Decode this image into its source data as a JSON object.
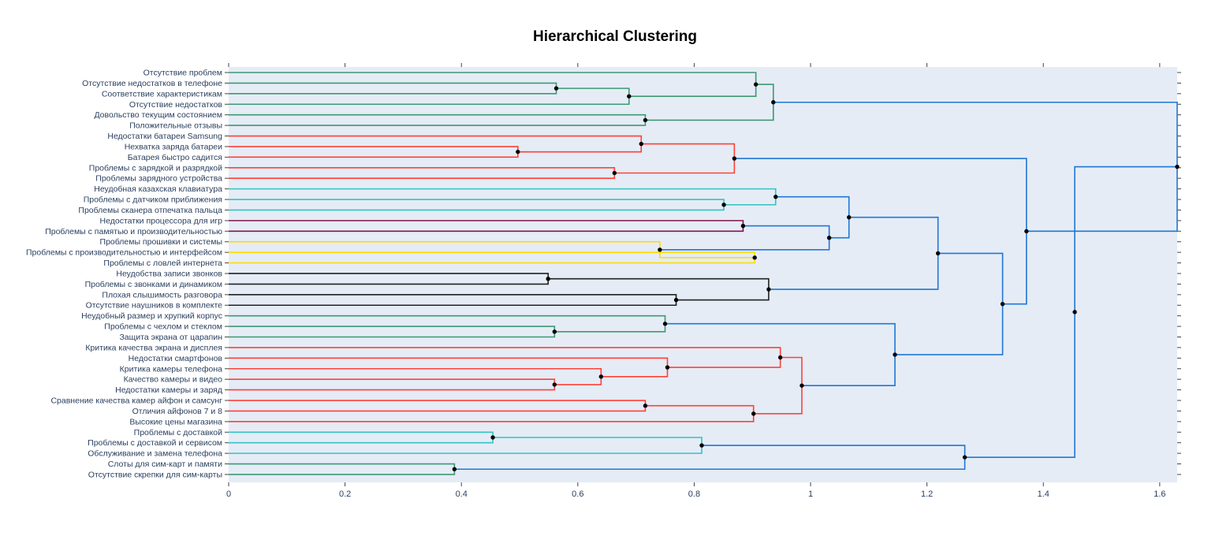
{
  "chart_data": {
    "type": "dendrogram",
    "title": "Hierarchical Clustering",
    "orientation": "horizontal",
    "xlim": [
      0,
      1.63
    ],
    "x_ticks": [
      "0",
      "0.2",
      "0.4",
      "0.6",
      "0.8",
      "1",
      "1.2",
      "1.4",
      "1.6"
    ],
    "x_tick_values": [
      0,
      0.2,
      0.4,
      0.6,
      0.8,
      1.0,
      1.2,
      1.4,
      1.6
    ],
    "plot_background": "#E5ECF6",
    "leaves": [
      "Отсутствие проблем",
      "Отсутствие недостатков в телефоне",
      "Соответствие характеристикам",
      "Отсутствие недостатков",
      "Довольство текущим состоянием",
      "Положительные отзывы",
      "Недостатки батареи Samsung",
      "Нехватка заряда батареи",
      "Батарея быстро садится",
      "Проблемы с зарядкой и разрядкой",
      "Проблемы зарядного устройства",
      "Неудобная казахская клавиатура",
      "Проблемы с датчиком приближения",
      "Проблемы сканера отпечатка пальца",
      "Недостатки процессора для игр",
      "Проблемы с памятью и производительностью",
      "Проблемы прошивки и системы",
      "Проблемы с производительностью и интерфейсом",
      "Проблемы с ловлей интернета",
      "Неудобства записи звонков",
      "Проблемы с звонками и динамиком",
      "Плохая слышимость разговора",
      "Отсутствие наушников в комплекте",
      "Неудобный размер и хрупкий корпус",
      "Проблемы с чехлом и стеклом",
      "Защита экрана от царапин",
      "Критика качества экрана и дисплея",
      "Недостатки смартфонов",
      "Критика камеры телефона",
      "Качество камеры и видео",
      "Недостатки камеры и заряд",
      "Сравнение качества камер айфон и самсунг",
      "Отличия айфонов 7 и 8",
      "Высокие цены магазина",
      "Проблемы с доставкой",
      "Проблемы с доставкой и сервисом",
      "Обслуживание и замена телефона",
      "Слоты для сим-карт и памяти",
      "Отсутствие скрепки для сим-карты"
    ],
    "merges": [
      {
        "a": "L1",
        "b": "L2",
        "height": 0.563,
        "color": "#3D9970"
      },
      {
        "a": "N0",
        "b": "L3",
        "height": 0.688,
        "color": "#3D9970"
      },
      {
        "a": "L0",
        "b": "N1",
        "height": 0.906,
        "color": "#3D9970"
      },
      {
        "a": "L4",
        "b": "L5",
        "height": 0.716,
        "color": "#3D9970"
      },
      {
        "a": "N2",
        "b": "N3",
        "height": 0.936,
        "color": "#3D9970"
      },
      {
        "a": "L7",
        "b": "L8",
        "height": 0.497,
        "color": "#FF4136"
      },
      {
        "a": "L6",
        "b": "N5",
        "height": 0.709,
        "color": "#FF4136"
      },
      {
        "a": "L9",
        "b": "L10",
        "height": 0.663,
        "color": "#FF4136"
      },
      {
        "a": "N6",
        "b": "N7",
        "height": 0.869,
        "color": "#FF4136"
      },
      {
        "a": "L12",
        "b": "L13",
        "height": 0.851,
        "color": "#35C2C2"
      },
      {
        "a": "L11",
        "b": "N9",
        "height": 0.94,
        "color": "#35C2C2"
      },
      {
        "a": "L14",
        "b": "L15",
        "height": 0.884,
        "color": "#85144B"
      },
      {
        "a": "L17",
        "b": "L18",
        "height": 0.904,
        "color": "#FFDC00"
      },
      {
        "a": "L16",
        "b": "N12",
        "height": 0.741,
        "color": "#FFDC00"
      },
      {
        "a": "N11",
        "b": "N13",
        "height": 1.032,
        "color": "#1F77D4"
      },
      {
        "a": "N10",
        "b": "N14",
        "height": 1.066,
        "color": "#1F77D4"
      },
      {
        "a": "L19",
        "b": "L20",
        "height": 0.549,
        "color": "#222222"
      },
      {
        "a": "L21",
        "b": "L22",
        "height": 0.769,
        "color": "#222222"
      },
      {
        "a": "N16",
        "b": "N17",
        "height": 0.928,
        "color": "#222222"
      },
      {
        "a": "N15",
        "b": "N18",
        "height": 1.219,
        "color": "#1F77D4"
      },
      {
        "a": "L24",
        "b": "L25",
        "height": 0.56,
        "color": "#3D9970"
      },
      {
        "a": "L23",
        "b": "N20",
        "height": 0.75,
        "color": "#3D9970"
      },
      {
        "a": "L29",
        "b": "L30",
        "height": 0.56,
        "color": "#FF4136"
      },
      {
        "a": "L28",
        "b": "N22",
        "height": 0.64,
        "color": "#FF4136"
      },
      {
        "a": "L27",
        "b": "N23",
        "height": 0.754,
        "color": "#FF4136"
      },
      {
        "a": "L26",
        "b": "N24",
        "height": 0.948,
        "color": "#FF4136"
      },
      {
        "a": "L31",
        "b": "L32",
        "height": 0.716,
        "color": "#FF4136"
      },
      {
        "a": "N26",
        "b": "L33",
        "height": 0.902,
        "color": "#FF4136"
      },
      {
        "a": "N25",
        "b": "N27",
        "height": 0.985,
        "color": "#FF4136"
      },
      {
        "a": "N21",
        "b": "N28",
        "height": 1.145,
        "color": "#1F77D4"
      },
      {
        "a": "N19",
        "b": "N29",
        "height": 1.33,
        "color": "#1F77D4"
      },
      {
        "a": "N8",
        "b": "N30",
        "height": 1.371,
        "color": "#1F77D4"
      },
      {
        "a": "N4",
        "b": "N31",
        "height": 1.63,
        "color": "#1F77D4"
      },
      {
        "a": "L34",
        "b": "L35",
        "height": 0.454,
        "color": "#35C2C2"
      },
      {
        "a": "N33",
        "b": "L36",
        "height": 0.813,
        "color": "#35C2C2"
      },
      {
        "a": "L37",
        "b": "L38",
        "height": 0.388,
        "color": "#3D9970"
      },
      {
        "a": "N34",
        "b": "N35",
        "height": 1.265,
        "color": "#1F77D4"
      },
      {
        "a": "N32",
        "b": "N36",
        "height": 1.454,
        "color": "#1F77D4"
      }
    ]
  }
}
